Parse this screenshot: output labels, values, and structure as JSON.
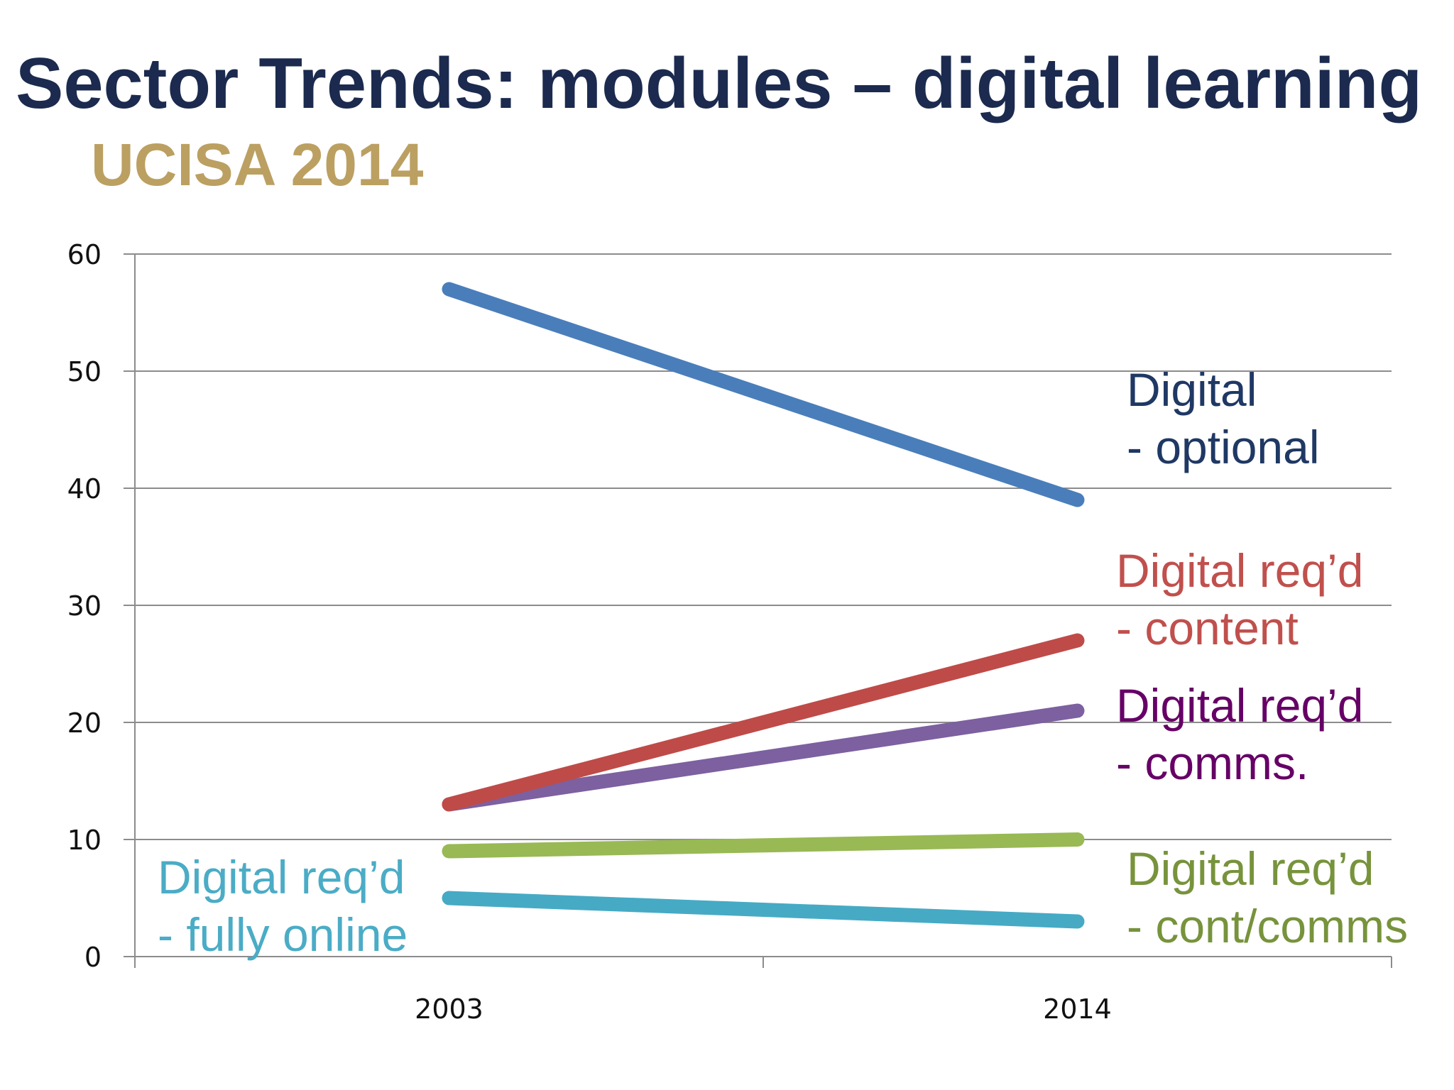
{
  "slide": {
    "title": "Sector Trends: modules – digital learning",
    "subtitle": "UCISA 2014",
    "title_color": "#1B2A4E",
    "subtitle_color": "#BBA062"
  },
  "chart_data": {
    "type": "line",
    "title": "Sector Trends: modules – digital learning",
    "subtitle": "UCISA 2014",
    "xlabel": "",
    "ylabel": "",
    "categories": [
      "2003",
      "2014"
    ],
    "ylim": [
      0,
      60
    ],
    "yticks": [
      "0",
      "10",
      "20",
      "30",
      "40",
      "50",
      "60"
    ],
    "grid": true,
    "legend": "inline labels beside line ends",
    "series": [
      {
        "name": "Digital - optional",
        "label_lines": [
          "Digital",
          "- optional"
        ],
        "values": [
          57,
          39
        ],
        "color": "#4A7EBB",
        "label_color": "#1F3864",
        "label_position": "right"
      },
      {
        "name": "Digital req'd - content",
        "label_lines": [
          "Digital req’d",
          "- content"
        ],
        "values": [
          13,
          27
        ],
        "color": "#BE4B48",
        "label_color": "#C0504D",
        "label_position": "right"
      },
      {
        "name": "Digital req'd - comms.",
        "label_lines": [
          "Digital req’d",
          "- comms."
        ],
        "values": [
          13,
          21
        ],
        "color": "#7D60A0",
        "label_color": "#660066",
        "label_position": "right"
      },
      {
        "name": "Digital req'd - cont/comms",
        "label_lines": [
          "Digital req’d",
          "- cont/comms"
        ],
        "values": [
          9,
          10
        ],
        "color": "#98B954",
        "label_color": "#77933C",
        "label_position": "right"
      },
      {
        "name": "Digital req'd - fully online",
        "label_lines": [
          "Digital req’d",
          "- fully online"
        ],
        "values": [
          5,
          3
        ],
        "color": "#46AAC5",
        "label_color": "#4BACC6",
        "label_position": "left"
      }
    ]
  }
}
